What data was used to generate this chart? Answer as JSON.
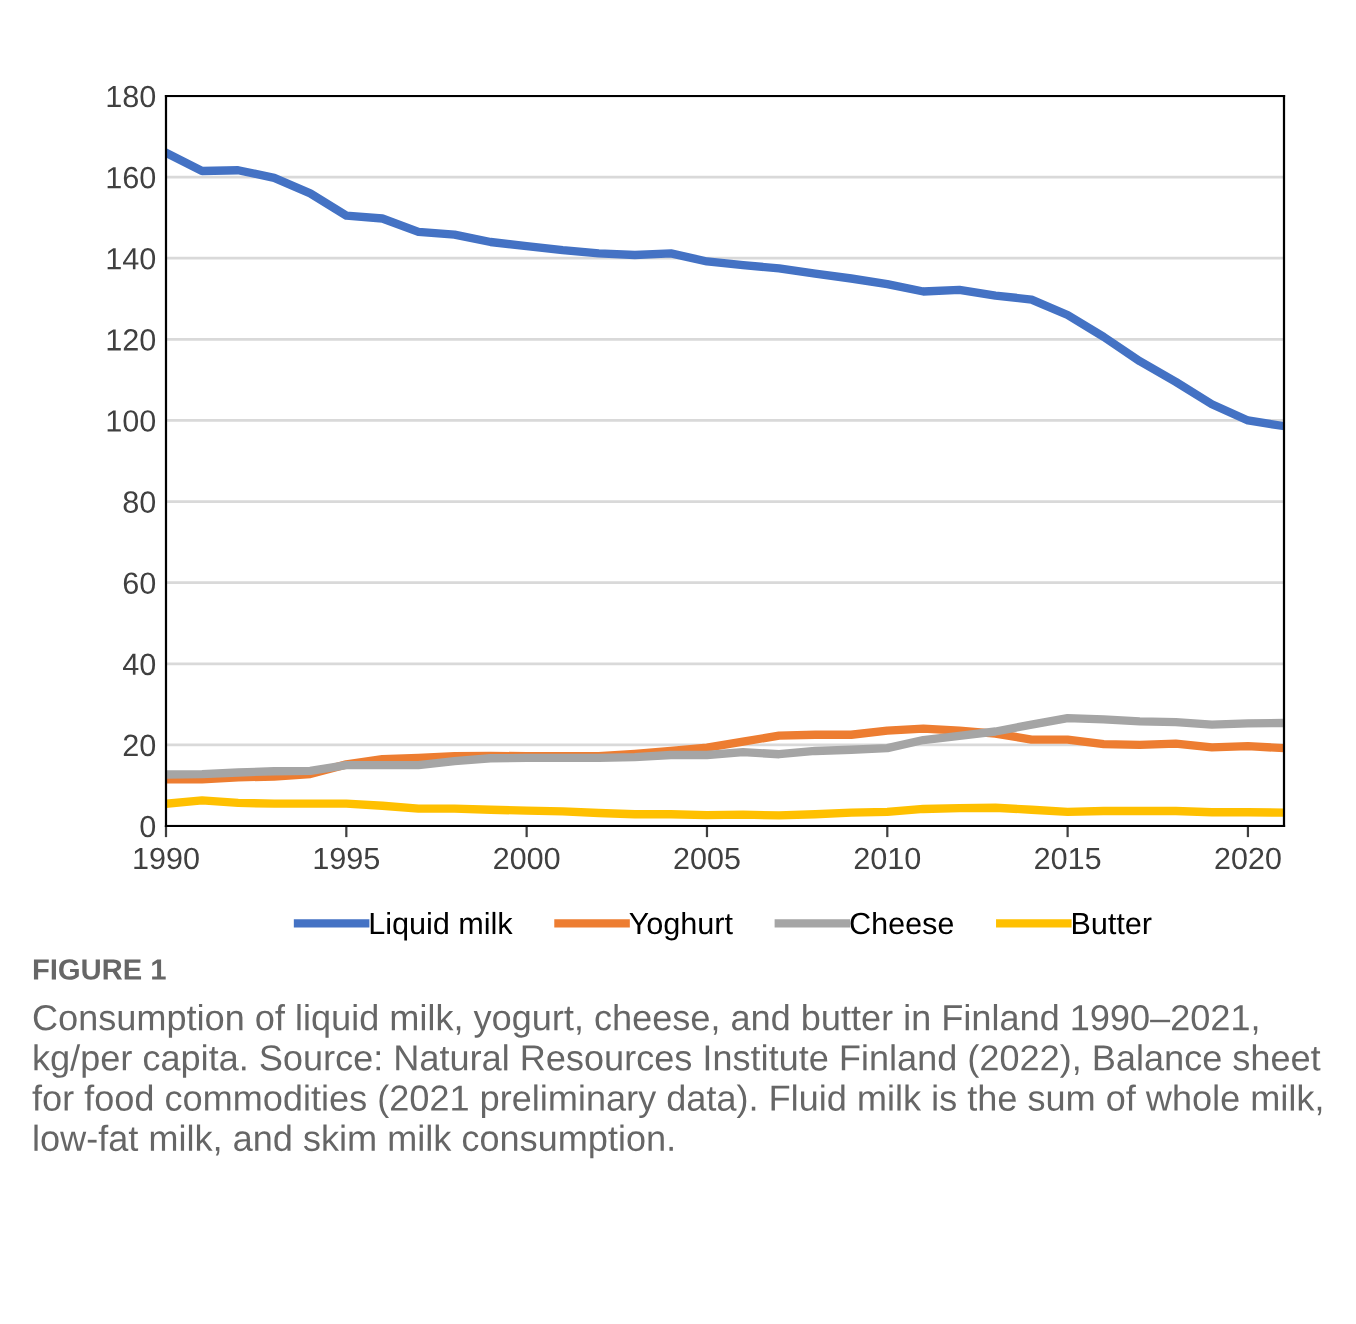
{
  "chart_data": {
    "type": "line",
    "title": "FIGURE 1",
    "annotations": [
      "Consumption of liquid milk, yogurt, cheese, and butter in Finland 1990–2021, kg/per capita. Source: Natural Resources Institute Finland (2022), Balance sheet for food commodities (2021 preliminary data). Fluid milk is the sum of whole milk, low-fat milk, and skim milk consumption."
    ],
    "x": [
      1990,
      1991,
      1992,
      1993,
      1994,
      1995,
      1996,
      1997,
      1998,
      1999,
      2000,
      2001,
      2002,
      2003,
      2004,
      2005,
      2006,
      2007,
      2008,
      2009,
      2010,
      2011,
      2012,
      2013,
      2014,
      2015,
      2016,
      2017,
      2018,
      2019,
      2020,
      2021
    ],
    "series": [
      {
        "name": "Liquid milk",
        "color": "#4472c4",
        "values": [
          166,
          161.5,
          161.7,
          159.8,
          156,
          150.5,
          149.8,
          146.5,
          145.8,
          144,
          143,
          142,
          141.2,
          140.8,
          141.2,
          139.2,
          138.3,
          137.5,
          136.2,
          135,
          133.6,
          131.8,
          132.2,
          130.8,
          129.8,
          126,
          120.6,
          114.6,
          109.5,
          104,
          100,
          98.6
        ]
      },
      {
        "name": "Yoghurt",
        "color": "#ed7d31",
        "values": [
          11.5,
          11.5,
          12,
          12.2,
          12.8,
          15.2,
          16.5,
          16.8,
          17.2,
          17.3,
          17.2,
          17.2,
          17.2,
          17.8,
          18.5,
          19.3,
          20.8,
          22.3,
          22.5,
          22.5,
          23.5,
          24,
          23.5,
          22.8,
          21.3,
          21.3,
          20.2,
          20,
          20.3,
          19.4,
          19.7,
          19.2
        ]
      },
      {
        "name": "Cheese",
        "color": "#a5a5a5",
        "values": [
          12.7,
          12.8,
          13.2,
          13.5,
          13.6,
          15,
          15,
          15,
          16,
          16.7,
          16.8,
          16.8,
          16.8,
          17,
          17.5,
          17.5,
          18.2,
          17.7,
          18.5,
          18.8,
          19.2,
          21.2,
          22.2,
          23.3,
          25,
          26.6,
          26.3,
          25.8,
          25.6,
          25,
          25.3,
          25.4
        ]
      },
      {
        "name": "Butter",
        "color": "#ffc000",
        "values": [
          5.5,
          6.3,
          5.7,
          5.5,
          5.5,
          5.5,
          5,
          4.3,
          4.3,
          4,
          3.8,
          3.6,
          3.2,
          2.9,
          2.9,
          2.7,
          2.8,
          2.6,
          2.9,
          3.3,
          3.5,
          4.2,
          4.4,
          4.5,
          4,
          3.5,
          3.7,
          3.7,
          3.7,
          3.4,
          3.4,
          3.3
        ]
      }
    ],
    "xlim": [
      1990,
      2021
    ],
    "xticks": [
      1990,
      1995,
      2000,
      2005,
      2010,
      2015,
      2020
    ],
    "ylim": [
      0,
      180
    ],
    "yticks": [
      0,
      20,
      40,
      60,
      80,
      100,
      120,
      140,
      160,
      180
    ],
    "grid": "y",
    "legend": "bottom",
    "marker": "none",
    "line_style": "solid"
  }
}
